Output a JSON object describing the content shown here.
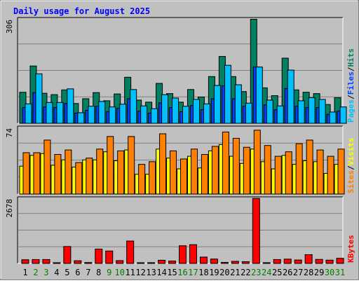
{
  "chart_data": {
    "type": "bar",
    "title": "Daily usage for August 2025",
    "days": [
      "1",
      "2",
      "3",
      "4",
      "5",
      "6",
      "7",
      "8",
      "9",
      "10",
      "11",
      "12",
      "13",
      "14",
      "15",
      "16",
      "17",
      "18",
      "19",
      "20",
      "21",
      "22",
      "23",
      "24",
      "25",
      "26",
      "27",
      "28",
      "29",
      "30",
      "31"
    ],
    "weekend_days": [
      "2",
      "3",
      "9",
      "10",
      "16",
      "17",
      "23",
      "24",
      "30",
      "31"
    ],
    "panels": [
      {
        "name": "hits-files-pages",
        "max_label": "306",
        "ymax": 306,
        "legend": [
          {
            "text": "Pages",
            "color": "#00c0ff"
          },
          {
            "text": "/",
            "color": "#000000"
          },
          {
            "text": "Files",
            "color": "#0040ff"
          },
          {
            "text": "/",
            "color": "#000000"
          },
          {
            "text": "Hits",
            "color": "#008060"
          }
        ],
        "series": [
          {
            "name": "Hits",
            "color": "#008060",
            "values": [
              91,
              168,
              88,
              84,
              98,
              58,
              72,
              90,
              66,
              86,
              135,
              68,
              62,
              117,
              87,
              62,
              99,
              77,
              137,
              196,
              137,
              93,
              305,
              104,
              81,
              191,
              98,
              91,
              87,
              55,
              75
            ]
          },
          {
            "name": "Files",
            "color": "#0040ff",
            "values": [
              46,
              90,
              48,
              46,
              58,
              30,
              38,
              50,
              34,
              44,
              72,
              36,
              30,
              60,
              46,
              34,
              52,
              40,
              72,
              110,
              72,
              50,
              165,
              54,
              40,
              102,
              50,
              46,
              46,
              26,
              36
            ]
          },
          {
            "name": "Pages",
            "color": "#00c0ff",
            "values": [
              57,
              145,
              61,
              61,
              101,
              31,
              50,
              64,
              48,
              56,
              99,
              51,
              43,
              84,
              74,
              50,
              70,
              57,
              111,
              170,
              113,
              59,
              165,
              68,
              51,
              156,
              66,
              75,
              70,
              33,
              48
            ]
          }
        ]
      },
      {
        "name": "visits-sites",
        "max_label": "74",
        "ymax": 74,
        "legend": [
          {
            "text": "Sites",
            "color": "#ff8000"
          },
          {
            "text": "/",
            "color": "#000000"
          },
          {
            "text": "Visits",
            "color": "#ffff00"
          }
        ],
        "series": [
          {
            "name": "Visits",
            "color": "#ffff00",
            "values": [
              31,
              43,
              45,
              32,
              38,
              30,
              38,
              38,
              47,
              37,
              49,
              22,
              22,
              50,
              40,
              28,
              42,
              29,
              48,
              55,
              42,
              34,
              50,
              36,
              28,
              43,
              33,
              37,
              36,
              23,
              33
            ]
          },
          {
            "name": "Sites",
            "color": "#ff8000",
            "values": [
              46,
              46,
              60,
              44,
              49,
              35,
              40,
              50,
              64,
              48,
              64,
              33,
              36,
              67,
              48,
              39,
              50,
              44,
              53,
              69,
              62,
              52,
              71,
              54,
              42,
              47,
              56,
              60,
              49,
              42,
              50
            ]
          }
        ]
      },
      {
        "name": "kbytes",
        "max_label": "2678",
        "ymax": 2678,
        "legend": [
          {
            "text": "KBytes",
            "color": "#ff0000"
          }
        ],
        "series": [
          {
            "name": "KBytes",
            "color": "#ff0000",
            "values": [
              150,
              160,
              160,
              25,
              695,
              110,
              35,
              590,
              510,
              115,
              920,
              15,
              30,
              130,
              95,
              725,
              770,
              260,
              180,
              40,
              85,
              70,
              2670,
              30,
              160,
              175,
              140,
              360,
              165,
              135,
              210
            ]
          }
        ]
      }
    ]
  }
}
